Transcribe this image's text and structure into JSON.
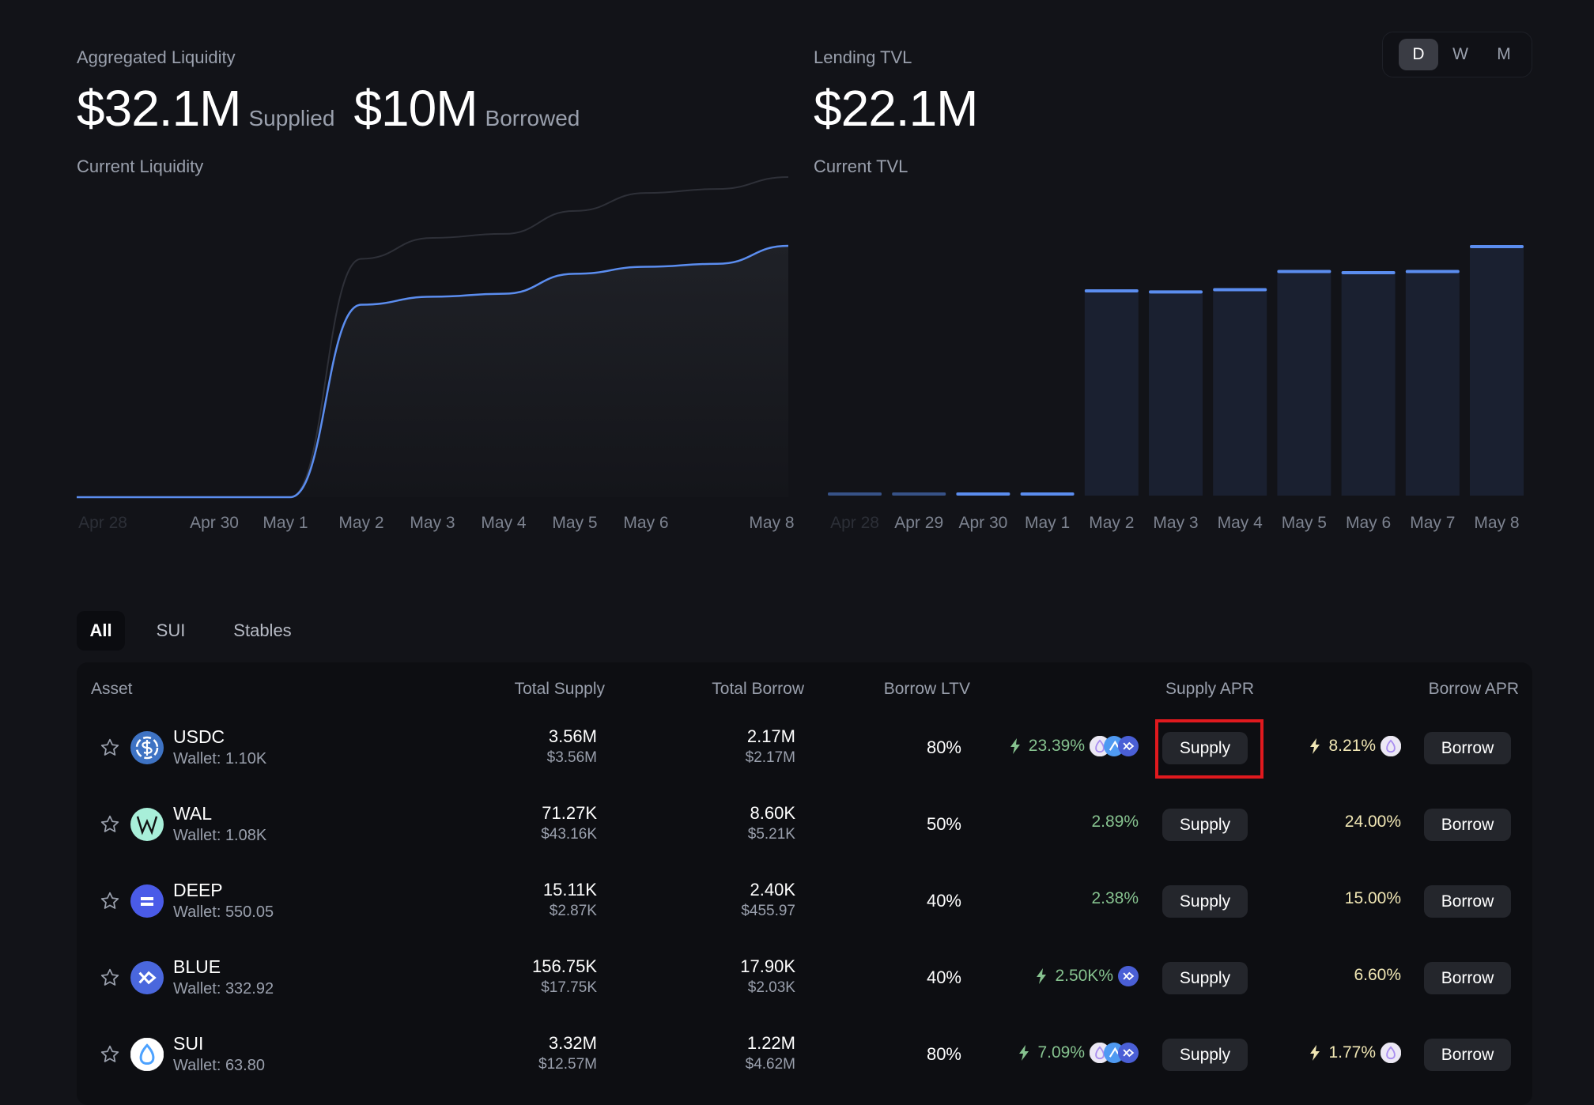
{
  "liquidity": {
    "label": "Aggregated Liquidity",
    "supplied_value": "$32.1M",
    "supplied_label": "Supplied",
    "borrowed_value": "$10M",
    "borrowed_label": "Borrowed",
    "sub_label": "Current Liquidity"
  },
  "tvl": {
    "label": "Lending TVL",
    "value": "$22.1M",
    "sub_label": "Current TVL"
  },
  "range_toggle": {
    "options": [
      "D",
      "W",
      "M"
    ],
    "selected": "D"
  },
  "chart_data": [
    {
      "type": "line",
      "title": "",
      "x_tick_labels": [
        "Apr 28",
        "Apr 30",
        "May 1",
        "May 2",
        "May 3",
        "May 4",
        "May 5",
        "May 6",
        "May 8"
      ],
      "x": [
        "Apr 28",
        "Apr 29",
        "Apr 30",
        "May 1",
        "May 2",
        "May 3",
        "May 4",
        "May 5",
        "May 6",
        "May 7",
        "May 8"
      ],
      "series": [
        {
          "color": "#2e3038",
          "values": [
            0,
            0,
            0,
            0,
            23.9,
            26.0,
            26.4,
            28.7,
            30.5,
            30.9,
            32.1
          ]
        },
        {
          "color": "#5b8def",
          "values": [
            0,
            0,
            0,
            0,
            19.3,
            20.1,
            20.4,
            22.4,
            23.1,
            23.4,
            25.2
          ]
        }
      ],
      "ylim": [
        0,
        32.1
      ],
      "grid": false
    },
    {
      "type": "bar",
      "title": "",
      "categories": [
        "Apr 28",
        "Apr 29",
        "Apr 30",
        "May 1",
        "May 2",
        "May 3",
        "May 4",
        "May 5",
        "May 6",
        "May 7",
        "May 8"
      ],
      "values": [
        0.1,
        0.1,
        0.1,
        0.1,
        18.2,
        18.1,
        18.3,
        19.9,
        19.8,
        19.9,
        22.1
      ],
      "ylim": [
        0,
        22.1
      ],
      "bar_color": "#1a2030",
      "cap_color": "#5b8def",
      "grid": false
    }
  ],
  "tabs": [
    "All",
    "SUI",
    "Stables"
  ],
  "table": {
    "headers": {
      "asset": "Asset",
      "total_supply": "Total Supply",
      "total_borrow": "Total Borrow",
      "borrow_ltv": "Borrow LTV",
      "supply_apr": "Supply APR",
      "borrow_apr": "Borrow APR"
    },
    "supply_button": "Supply",
    "borrow_button": "Borrow",
    "rows": [
      {
        "symbol": "USDC",
        "wallet": "Wallet: 1.10K",
        "icon": "usdc-icon",
        "icon_color": "#3e73c4",
        "supply": "3.56M",
        "supply_usd": "$3.56M",
        "borrow": "2.17M",
        "borrow_usd": "$2.17M",
        "ltv": "80%",
        "supply_apr": "23.39%",
        "supply_boost": true,
        "supply_rewards": [
          "sui",
          "navx",
          "blue"
        ],
        "borrow_apr": "8.21%",
        "borrow_boost": true,
        "borrow_rewards": [
          "sui"
        ]
      },
      {
        "symbol": "WAL",
        "wallet": "Wallet: 1.08K",
        "icon": "wal-icon",
        "icon_color": "#a8efd9",
        "supply": "71.27K",
        "supply_usd": "$43.16K",
        "borrow": "8.60K",
        "borrow_usd": "$5.21K",
        "ltv": "50%",
        "supply_apr": "2.89%",
        "supply_boost": false,
        "supply_rewards": [],
        "borrow_apr": "24.00%",
        "borrow_boost": false,
        "borrow_rewards": []
      },
      {
        "symbol": "DEEP",
        "wallet": "Wallet: 550.05",
        "icon": "deep-icon",
        "icon_color": "#4a5be8",
        "supply": "15.11K",
        "supply_usd": "$2.87K",
        "borrow": "2.40K",
        "borrow_usd": "$455.97",
        "ltv": "40%",
        "supply_apr": "2.38%",
        "supply_boost": false,
        "supply_rewards": [],
        "borrow_apr": "15.00%",
        "borrow_boost": false,
        "borrow_rewards": []
      },
      {
        "symbol": "BLUE",
        "wallet": "Wallet: 332.92",
        "icon": "blue-icon",
        "icon_color": "#4a67dd",
        "supply": "156.75K",
        "supply_usd": "$17.75K",
        "borrow": "17.90K",
        "borrow_usd": "$2.03K",
        "ltv": "40%",
        "supply_apr": "2.50K%",
        "supply_boost": true,
        "supply_rewards": [
          "blue"
        ],
        "borrow_apr": "6.60%",
        "borrow_boost": false,
        "borrow_rewards": []
      },
      {
        "symbol": "SUI",
        "wallet": "Wallet: 63.80",
        "icon": "sui-icon",
        "icon_color": "#ffffff",
        "supply": "3.32M",
        "supply_usd": "$12.57M",
        "borrow": "1.22M",
        "borrow_usd": "$4.62M",
        "ltv": "80%",
        "supply_apr": "7.09%",
        "supply_boost": true,
        "supply_rewards": [
          "sui",
          "navx",
          "blue"
        ],
        "borrow_apr": "1.77%",
        "borrow_boost": true,
        "borrow_rewards": [
          "sui"
        ]
      }
    ]
  },
  "highlight_color": "#e0191e"
}
